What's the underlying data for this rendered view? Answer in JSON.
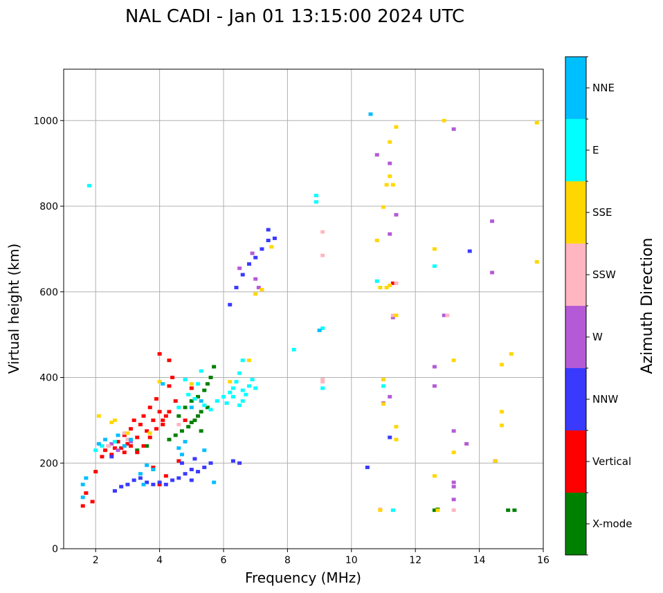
{
  "chart_data": {
    "type": "scatter",
    "title": "NAL CADI - Jan 01 13:15:00 2024 UTC",
    "xlabel": "Frequency (MHz)",
    "ylabel": "Virtual height (km)",
    "xlim": [
      1,
      16
    ],
    "ylim": [
      0,
      1120
    ],
    "xticks": [
      2,
      4,
      6,
      8,
      10,
      12,
      14,
      16
    ],
    "yticks": [
      0,
      200,
      400,
      600,
      800,
      1000
    ],
    "grid": true,
    "colorbar": {
      "title": "Azimuth Direction",
      "categories": [
        "X-mode",
        "Vertical",
        "NNW",
        "W",
        "SSW",
        "SSE",
        "E",
        "NNE"
      ],
      "colors": [
        "#008000",
        "#ff0000",
        "#3a3aff",
        "#b55ad6",
        "#ffb6c1",
        "#ffd700",
        "#00ffff",
        "#00bfff"
      ]
    },
    "series": [
      {
        "name": "X-mode",
        "points": [
          [
            3.3,
            230
          ],
          [
            3.6,
            240
          ],
          [
            4.3,
            255
          ],
          [
            4.5,
            265
          ],
          [
            4.7,
            275
          ],
          [
            4.9,
            285
          ],
          [
            5.0,
            295
          ],
          [
            5.1,
            300
          ],
          [
            5.2,
            310
          ],
          [
            5.3,
            320
          ],
          [
            5.5,
            330
          ],
          [
            5.0,
            345
          ],
          [
            5.2,
            355
          ],
          [
            5.4,
            370
          ],
          [
            5.5,
            385
          ],
          [
            5.6,
            400
          ],
          [
            5.7,
            425
          ],
          [
            4.8,
            330
          ],
          [
            4.6,
            310
          ],
          [
            5.3,
            275
          ],
          [
            12.6,
            90
          ],
          [
            12.7,
            92
          ],
          [
            14.9,
            90
          ],
          [
            15.1,
            90
          ]
        ]
      },
      {
        "name": "Vertical",
        "points": [
          [
            1.6,
            100
          ],
          [
            1.7,
            130
          ],
          [
            1.9,
            110
          ],
          [
            2.0,
            180
          ],
          [
            2.2,
            215
          ],
          [
            2.3,
            230
          ],
          [
            2.4,
            240
          ],
          [
            2.5,
            220
          ],
          [
            2.7,
            250
          ],
          [
            2.8,
            235
          ],
          [
            2.9,
            265
          ],
          [
            3.0,
            245
          ],
          [
            3.1,
            280
          ],
          [
            3.2,
            300
          ],
          [
            3.3,
            260
          ],
          [
            3.4,
            290
          ],
          [
            3.5,
            310
          ],
          [
            3.6,
            275
          ],
          [
            3.7,
            330
          ],
          [
            3.8,
            300
          ],
          [
            3.9,
            350
          ],
          [
            4.0,
            320
          ],
          [
            4.1,
            290
          ],
          [
            4.2,
            310
          ],
          [
            4.3,
            380
          ],
          [
            4.4,
            400
          ],
          [
            3.3,
            225
          ],
          [
            3.5,
            240
          ],
          [
            3.7,
            260
          ],
          [
            3.9,
            280
          ],
          [
            4.1,
            300
          ],
          [
            4.3,
            320
          ],
          [
            4.0,
            150
          ],
          [
            4.2,
            170
          ],
          [
            3.8,
            190
          ],
          [
            4.6,
            205
          ],
          [
            4.3,
            440
          ],
          [
            4.0,
            455
          ],
          [
            2.6,
            235
          ],
          [
            2.9,
            225
          ],
          [
            3.1,
            240
          ],
          [
            4.5,
            345
          ],
          [
            4.8,
            300
          ],
          [
            5.0,
            375
          ],
          [
            11.3,
            620
          ]
        ]
      },
      {
        "name": "NNW",
        "points": [
          [
            2.6,
            135
          ],
          [
            2.8,
            145
          ],
          [
            3.0,
            150
          ],
          [
            3.2,
            160
          ],
          [
            3.4,
            165
          ],
          [
            3.6,
            155
          ],
          [
            3.8,
            150
          ],
          [
            4.0,
            155
          ],
          [
            4.2,
            150
          ],
          [
            4.4,
            160
          ],
          [
            4.6,
            165
          ],
          [
            4.8,
            175
          ],
          [
            5.0,
            185
          ],
          [
            5.2,
            180
          ],
          [
            5.4,
            190
          ],
          [
            5.6,
            200
          ],
          [
            5.0,
            160
          ],
          [
            4.7,
            200
          ],
          [
            5.1,
            210
          ],
          [
            6.3,
            205
          ],
          [
            6.5,
            200
          ],
          [
            6.2,
            570
          ],
          [
            6.4,
            610
          ],
          [
            6.6,
            640
          ],
          [
            6.8,
            665
          ],
          [
            7.0,
            680
          ],
          [
            7.2,
            700
          ],
          [
            7.4,
            720
          ],
          [
            7.6,
            725
          ],
          [
            7.4,
            745
          ],
          [
            2.5,
            215
          ],
          [
            2.2,
            240
          ],
          [
            10.5,
            190
          ],
          [
            11.2,
            260
          ],
          [
            13.7,
            695
          ],
          [
            14.5,
            205
          ]
        ]
      },
      {
        "name": "W",
        "points": [
          [
            2.7,
            230
          ],
          [
            3.1,
            250
          ],
          [
            2.5,
            245
          ],
          [
            6.5,
            655
          ],
          [
            6.9,
            690
          ],
          [
            7.1,
            610
          ],
          [
            7.0,
            630
          ],
          [
            10.8,
            920
          ],
          [
            11.2,
            900
          ],
          [
            11.2,
            735
          ],
          [
            11.3,
            540
          ],
          [
            11.4,
            780
          ],
          [
            12.6,
            425
          ],
          [
            12.6,
            380
          ],
          [
            12.9,
            545
          ],
          [
            13.2,
            980
          ],
          [
            13.2,
            275
          ],
          [
            13.2,
            155
          ],
          [
            13.2,
            145
          ],
          [
            13.2,
            115
          ],
          [
            13.6,
            245
          ],
          [
            14.4,
            645
          ],
          [
            14.4,
            765
          ],
          [
            11.0,
            340
          ],
          [
            11.2,
            355
          ]
        ]
      },
      {
        "name": "SSW",
        "points": [
          [
            2.4,
            240
          ],
          [
            2.9,
            270
          ],
          [
            3.0,
            255
          ],
          [
            9.1,
            740
          ],
          [
            9.1,
            685
          ],
          [
            9.1,
            395
          ],
          [
            9.1,
            390
          ],
          [
            11.3,
            545
          ],
          [
            11.4,
            620
          ],
          [
            13.0,
            545
          ],
          [
            13.2,
            90
          ],
          [
            10.9,
            92
          ],
          [
            4.6,
            290
          ]
        ]
      },
      {
        "name": "SSE",
        "points": [
          [
            2.1,
            310
          ],
          [
            2.5,
            295
          ],
          [
            2.6,
            300
          ],
          [
            3.0,
            270
          ],
          [
            3.7,
            270
          ],
          [
            4.0,
            390
          ],
          [
            5.0,
            385
          ],
          [
            6.2,
            390
          ],
          [
            6.8,
            440
          ],
          [
            7.0,
            595
          ],
          [
            7.2,
            605
          ],
          [
            7.5,
            705
          ],
          [
            10.8,
            720
          ],
          [
            10.9,
            610
          ],
          [
            11.1,
            610
          ],
          [
            11.0,
            395
          ],
          [
            11.0,
            338
          ],
          [
            11.1,
            850
          ],
          [
            11.2,
            870
          ],
          [
            11.2,
            950
          ],
          [
            11.3,
            850
          ],
          [
            11.4,
            985
          ],
          [
            11.4,
            545
          ],
          [
            11.4,
            285
          ],
          [
            11.4,
            255
          ],
          [
            11.2,
            615
          ],
          [
            12.6,
            700
          ],
          [
            12.6,
            170
          ],
          [
            12.7,
            90
          ],
          [
            12.9,
            1000
          ],
          [
            13.2,
            440
          ],
          [
            13.2,
            225
          ],
          [
            14.5,
            205
          ],
          [
            14.7,
            430
          ],
          [
            14.7,
            320
          ],
          [
            14.7,
            288
          ],
          [
            15.0,
            455
          ],
          [
            15.8,
            995
          ],
          [
            15.8,
            670
          ],
          [
            10.9,
            90
          ],
          [
            11.0,
            798
          ]
        ]
      },
      {
        "name": "E",
        "points": [
          [
            1.8,
            848
          ],
          [
            2.0,
            230
          ],
          [
            2.2,
            240
          ],
          [
            2.6,
            250
          ],
          [
            4.6,
            330
          ],
          [
            4.9,
            360
          ],
          [
            5.1,
            350
          ],
          [
            5.4,
            335
          ],
          [
            5.6,
            325
          ],
          [
            5.8,
            345
          ],
          [
            6.0,
            355
          ],
          [
            6.2,
            365
          ],
          [
            6.3,
            375
          ],
          [
            6.4,
            390
          ],
          [
            6.5,
            410
          ],
          [
            6.6,
            345
          ],
          [
            6.7,
            360
          ],
          [
            6.8,
            380
          ],
          [
            6.9,
            395
          ],
          [
            6.6,
            440
          ],
          [
            7.0,
            375
          ],
          [
            6.5,
            335
          ],
          [
            4.8,
            395
          ],
          [
            5.3,
            415
          ],
          [
            8.2,
            465
          ],
          [
            8.9,
            825
          ],
          [
            8.9,
            810
          ],
          [
            9.1,
            515
          ],
          [
            9.1,
            375
          ],
          [
            10.8,
            625
          ],
          [
            11.0,
            380
          ],
          [
            11.3,
            90
          ],
          [
            12.6,
            660
          ],
          [
            5.2,
            385
          ],
          [
            6.1,
            340
          ],
          [
            6.3,
            355
          ],
          [
            6.6,
            370
          ]
        ]
      },
      {
        "name": "NNE",
        "points": [
          [
            1.6,
            150
          ],
          [
            1.7,
            165
          ],
          [
            1.6,
            120
          ],
          [
            2.1,
            245
          ],
          [
            2.3,
            255
          ],
          [
            2.7,
            265
          ],
          [
            2.9,
            240
          ],
          [
            3.1,
            255
          ],
          [
            3.4,
            175
          ],
          [
            3.5,
            150
          ],
          [
            3.6,
            195
          ],
          [
            3.8,
            185
          ],
          [
            4.1,
            385
          ],
          [
            4.6,
            235
          ],
          [
            4.7,
            220
          ],
          [
            4.8,
            250
          ],
          [
            5.4,
            230
          ],
          [
            5.7,
            155
          ],
          [
            5.0,
            330
          ],
          [
            5.3,
            345
          ],
          [
            10.6,
            1015
          ],
          [
            9.0,
            510
          ]
        ]
      }
    ]
  }
}
